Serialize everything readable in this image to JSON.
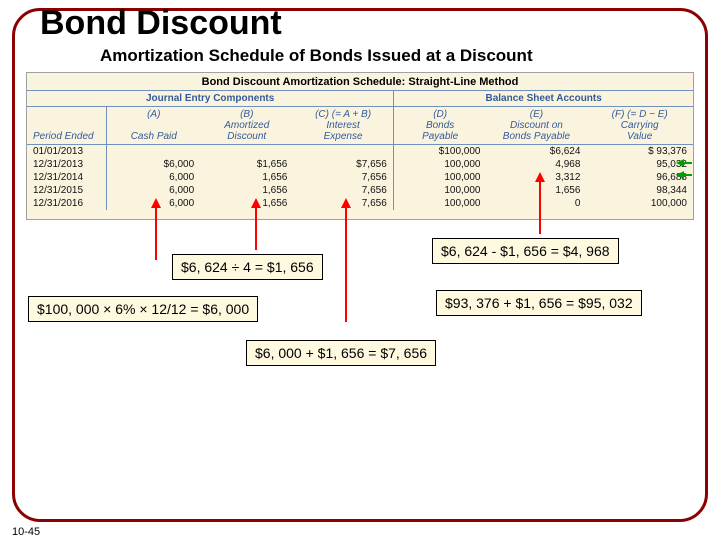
{
  "title": "Bond Discount",
  "subtitle": "Amortization Schedule of Bonds Issued at a Discount",
  "chart_title": "Bond Discount Amortization Schedule: Straight-Line Method",
  "sections": {
    "left": "Journal Entry Components",
    "right": "Balance Sheet Accounts"
  },
  "columns": {
    "period": "Period Ended",
    "a": "(A)<br><br>Cash Paid",
    "b": "(B)<br>Amortized<br>Discount",
    "c": "(C) (= A + B)<br>Interest<br>Expense",
    "d": "(D)<br>Bonds<br>Payable",
    "e": "(E)<br>Discount on<br>Bonds Payable",
    "f": "(F) (= D − E)<br>Carrying<br>Value"
  },
  "rows": [
    {
      "period": "01/01/2013",
      "a": "",
      "b": "",
      "c": "",
      "d": "$100,000",
      "e": "$6,624",
      "f": "$ 93,376"
    },
    {
      "period": "12/31/2013",
      "a": "$6,000",
      "b": "$1,656",
      "c": "$7,656",
      "d": "100,000",
      "e": "4,968",
      "f": "95,032"
    },
    {
      "period": "12/31/2014",
      "a": "6,000",
      "b": "1,656",
      "c": "7,656",
      "d": "100,000",
      "e": "3,312",
      "f": "96,688"
    },
    {
      "period": "12/31/2015",
      "a": "6,000",
      "b": "1,656",
      "c": "7,656",
      "d": "100,000",
      "e": "1,656",
      "f": "98,344"
    },
    {
      "period": "12/31/2016",
      "a": "6,000",
      "b": "1,656",
      "c": "7,656",
      "d": "100,000",
      "e": "0",
      "f": "100,000"
    }
  ],
  "callouts": {
    "c1": "$6, 624 ÷ 4 = $1, 656",
    "c2": "$100, 000 × 6% × 12/12 = $6, 000",
    "c3": "$6, 624 - $1, 656 = $4, 968",
    "c4": "$93, 376 + $1, 656 = $95, 032",
    "c5": "$6, 000 + $1, 656 = $7, 656"
  },
  "page_num": "10-45",
  "colors": {
    "frame": "#8b0000",
    "table_bg": "#faf4df",
    "header_text": "#335a9a",
    "table_border": "#7090c0",
    "callout_bg": "#fff9e0",
    "arrow": "#ff0000",
    "arrow_green": "#00a000"
  }
}
